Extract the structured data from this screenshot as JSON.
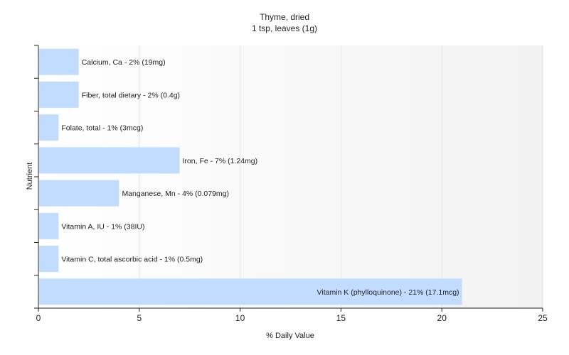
{
  "chart_data": {
    "type": "bar",
    "orientation": "horizontal",
    "title": "Thyme, dried",
    "subtitle": "1 tsp, leaves (1g)",
    "xlabel": "% Daily Value",
    "ylabel": "Nutrient",
    "xlim": [
      0,
      25
    ],
    "xticks": [
      "0",
      "5",
      "10",
      "15",
      "20",
      "25"
    ],
    "grid": true,
    "bar_color": "#c2dcff",
    "categories": [
      "Calcium, Ca",
      "Fiber, total dietary",
      "Folate, total",
      "Iron, Fe",
      "Manganese, Mn",
      "Vitamin A, IU",
      "Vitamin C, total ascorbic acid",
      "Vitamin K (phylloquinone)"
    ],
    "values": [
      2,
      2,
      1,
      7,
      4,
      1,
      1,
      21
    ],
    "labels": [
      "Calcium, Ca - 2% (19mg)",
      "Fiber, total dietary - 2% (0.4g)",
      "Folate, total - 1% (3mcg)",
      "Iron, Fe - 7% (1.24mg)",
      "Manganese, Mn - 4% (0.079mg)",
      "Vitamin A, IU - 1% (38IU)",
      "Vitamin C, total ascorbic acid - 1% (0.5mg)",
      "Vitamin K (phylloquinone) - 21% (17.1mcg)"
    ]
  }
}
